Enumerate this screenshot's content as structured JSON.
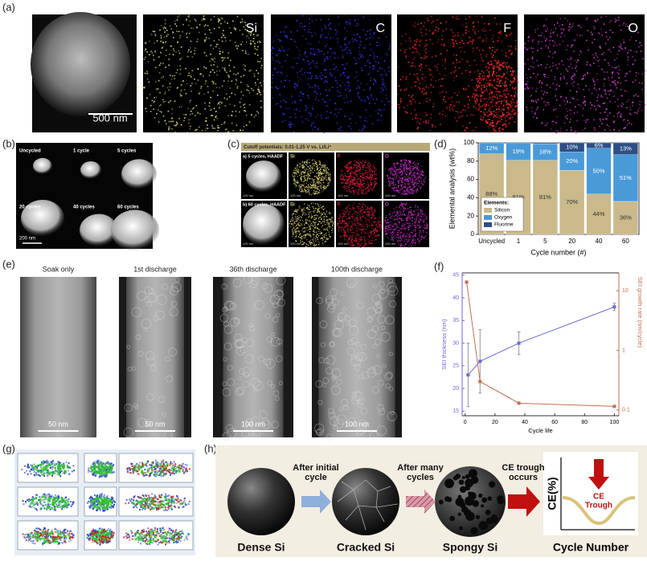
{
  "panels": {
    "a": {
      "label": "(a)",
      "maps": [
        "Si",
        "C",
        "F",
        "O"
      ],
      "scale": "500 nm"
    },
    "b": {
      "label": "(b)",
      "frames": [
        "Uncycled",
        "1 cycle",
        "5 cycles",
        "20 cycles",
        "40 cycles",
        "60 cycles"
      ],
      "scale": "200 nm"
    },
    "c": {
      "label": "(c)",
      "header": "Cutoff potentials: 0.01-1.25 V vs. Li/Li⁺",
      "rows": [
        "a) 5 cycles, HAADF",
        "b) 60 cycles, HAADF"
      ],
      "maps": [
        "Si",
        "F",
        "O"
      ],
      "scale": "100 nm"
    },
    "d": {
      "label": "(d)"
    },
    "e": {
      "label": "(e)",
      "frames": [
        {
          "title": "Soak only",
          "scale": "50 nm"
        },
        {
          "title": "1st discharge",
          "scale": "50 nm"
        },
        {
          "title": "36th discharge",
          "scale": "100 nm"
        },
        {
          "title": "100th discharge",
          "scale": "100 nm"
        }
      ]
    },
    "f": {
      "label": "(f)"
    },
    "g": {
      "label": "(g)"
    },
    "h": {
      "label": "(h)",
      "stages": [
        "Dense Si",
        "Cracked Si",
        "Spongy Si"
      ],
      "arrows": [
        [
          "After initial",
          "cycle"
        ],
        [
          "After many",
          "cycles"
        ],
        [
          "CE trough",
          "occurs"
        ]
      ],
      "y_label": "CE(%)",
      "x_label": "Cycle Number",
      "callout": [
        "CE",
        "Trough"
      ]
    }
  },
  "chart_data": [
    {
      "type": "stacked-bar",
      "ylabel": "Elemental analysis (wt%)",
      "xlabel": "Cycle number (#)",
      "categories": [
        "Uncycled",
        "1",
        "5",
        "20",
        "40",
        "60"
      ],
      "ylim": [
        0,
        100
      ],
      "yticks": [
        0,
        20,
        40,
        60,
        80,
        100
      ],
      "grid": false,
      "legend_title": "Elements:",
      "legend": "lower left",
      "series": [
        {
          "name": "Silicon",
          "color": "#c9b98b",
          "values": [
            88,
            81,
            81,
            70,
            44,
            36
          ],
          "value_labels": [
            "88%",
            "81%",
            "81%",
            "70%",
            "44%",
            "36%"
          ]
        },
        {
          "name": "Oxygen",
          "color": "#4a9ad8",
          "values": [
            12,
            19,
            18,
            20,
            50,
            51
          ],
          "value_labels": [
            "12%",
            "19%",
            "18%",
            "20%",
            "50%",
            "51%"
          ]
        },
        {
          "name": "Fluorine",
          "color": "#2d4f86",
          "values": [
            0,
            0,
            1,
            10,
            6,
            13
          ],
          "value_labels": [
            null,
            null,
            null,
            "10%",
            "6%",
            "13%"
          ]
        }
      ]
    },
    {
      "type": "dual-axis-line",
      "xlabel": "Cycle life",
      "ylabel": "SEI thickness (nm)",
      "y2label": "SEI growth rate (nm/cycle)",
      "xlim": [
        -2,
        103
      ],
      "xticks": [
        0,
        20,
        40,
        60,
        80,
        100
      ],
      "ylim": [
        14,
        45.5
      ],
      "yticks": [
        15,
        20,
        25,
        30,
        35,
        40,
        45
      ],
      "y2lim": [
        0.08,
        20
      ],
      "y2ticks": [
        0.1,
        1,
        10
      ],
      "y2log": true,
      "grid": false,
      "series": [
        {
          "color": "#6a6ad6",
          "x": [
            2,
            10,
            36,
            100
          ],
          "values": [
            23,
            26,
            30,
            38
          ],
          "errors": [
            7,
            7,
            2.5,
            0.8
          ]
        },
        {
          "color": "#c0704e",
          "axis": "y2",
          "x": [
            1,
            10,
            36,
            100
          ],
          "values": [
            14,
            0.3,
            0.13,
            0.115
          ]
        }
      ]
    }
  ]
}
